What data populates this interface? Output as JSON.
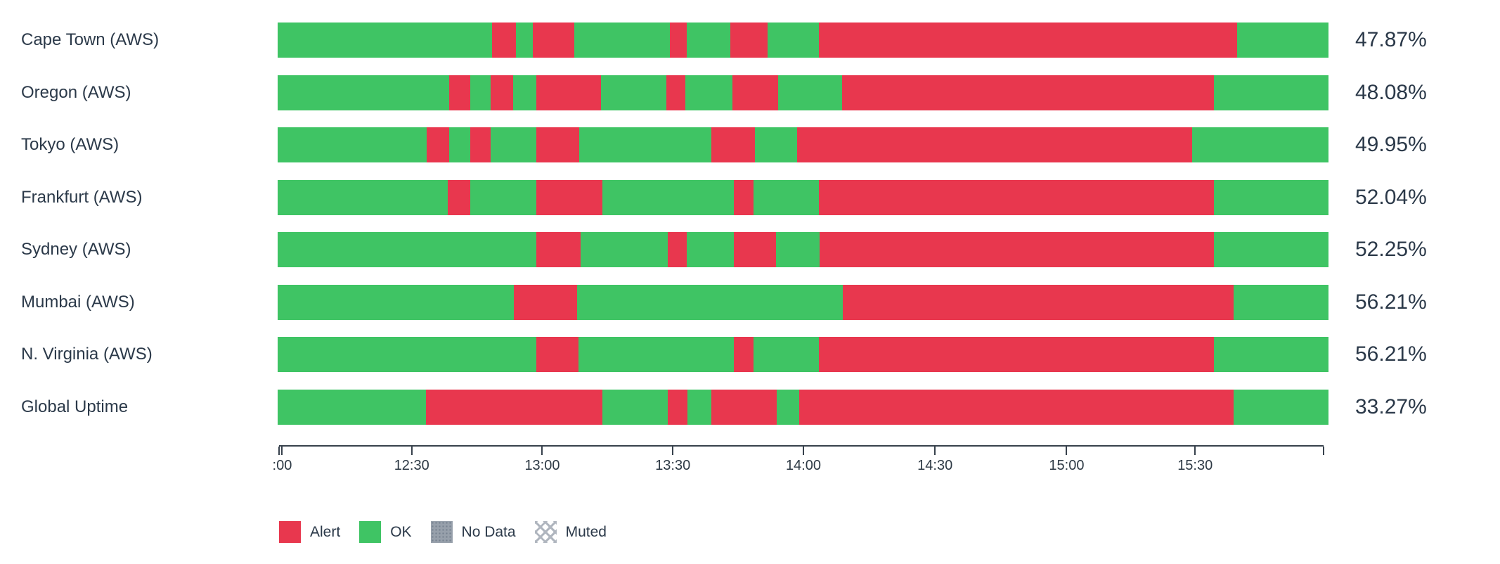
{
  "colors": {
    "alert": "#e8374e",
    "ok": "#3fc464",
    "no_data": "#97a0ab",
    "text": "#2b3949",
    "axis": "#37414c"
  },
  "chart_data": {
    "type": "status-timeline",
    "title": "",
    "xlabel": "",
    "ylabel": "",
    "grid": false,
    "legend_position": "bottom-left",
    "time_range": {
      "start": "12:00",
      "end": "16:00"
    },
    "time_ticks": [
      {
        "label": "",
        "f": 0
      },
      {
        "label": ":00",
        "f": 0.003
      },
      {
        "label": "12:30",
        "f": 0.127
      },
      {
        "label": "13:00",
        "f": 0.252
      },
      {
        "label": "13:30",
        "f": 0.377
      },
      {
        "label": "14:00",
        "f": 0.502
      },
      {
        "label": "14:30",
        "f": 0.628
      },
      {
        "label": "15:00",
        "f": 0.754
      },
      {
        "label": "15:30",
        "f": 0.877
      },
      {
        "label": "",
        "f": 1
      }
    ],
    "legend": [
      {
        "label": "Alert",
        "style": "alert"
      },
      {
        "label": "OK",
        "style": "ok"
      },
      {
        "label": "No Data",
        "style": "nodata"
      },
      {
        "label": "Muted",
        "style": "muted"
      }
    ],
    "rows": [
      {
        "label": "Cape Town (AWS)",
        "uptime": "47.87%",
        "segments": [
          [
            "ok",
            0,
            0.204
          ],
          [
            "alert",
            0.204,
            0.227
          ],
          [
            "ok",
            0.227,
            0.243
          ],
          [
            "alert",
            0.243,
            0.282
          ],
          [
            "ok",
            0.282,
            0.373
          ],
          [
            "alert",
            0.373,
            0.389
          ],
          [
            "ok",
            0.389,
            0.431
          ],
          [
            "alert",
            0.431,
            0.466
          ],
          [
            "ok",
            0.466,
            0.515
          ],
          [
            "alert",
            0.515,
            0.913
          ],
          [
            "ok",
            0.913,
            1
          ]
        ]
      },
      {
        "label": "Oregon (AWS)",
        "uptime": "48.08%",
        "segments": [
          [
            "ok",
            0,
            0.163
          ],
          [
            "alert",
            0.163,
            0.183
          ],
          [
            "ok",
            0.183,
            0.203
          ],
          [
            "alert",
            0.203,
            0.224
          ],
          [
            "ok",
            0.224,
            0.246
          ],
          [
            "alert",
            0.246,
            0.308
          ],
          [
            "ok",
            0.308,
            0.37
          ],
          [
            "alert",
            0.37,
            0.388
          ],
          [
            "ok",
            0.388,
            0.433
          ],
          [
            "alert",
            0.433,
            0.476
          ],
          [
            "ok",
            0.476,
            0.537
          ],
          [
            "alert",
            0.537,
            0.891
          ],
          [
            "ok",
            0.891,
            1
          ]
        ]
      },
      {
        "label": "Tokyo (AWS)",
        "uptime": "49.95%",
        "segments": [
          [
            "ok",
            0,
            0.142
          ],
          [
            "alert",
            0.142,
            0.163
          ],
          [
            "ok",
            0.163,
            0.183
          ],
          [
            "alert",
            0.183,
            0.203
          ],
          [
            "ok",
            0.203,
            0.246
          ],
          [
            "alert",
            0.246,
            0.287
          ],
          [
            "ok",
            0.287,
            0.413
          ],
          [
            "alert",
            0.413,
            0.454
          ],
          [
            "ok",
            0.454,
            0.494
          ],
          [
            "alert",
            0.494,
            0.87
          ],
          [
            "ok",
            0.87,
            1
          ]
        ]
      },
      {
        "label": "Frankfurt (AWS)",
        "uptime": "52.04%",
        "segments": [
          [
            "ok",
            0,
            0.162
          ],
          [
            "alert",
            0.162,
            0.183
          ],
          [
            "ok",
            0.183,
            0.246
          ],
          [
            "alert",
            0.246,
            0.309
          ],
          [
            "ok",
            0.309,
            0.434
          ],
          [
            "alert",
            0.434,
            0.453
          ],
          [
            "ok",
            0.453,
            0.515
          ],
          [
            "alert",
            0.515,
            0.891
          ],
          [
            "ok",
            0.891,
            1
          ]
        ]
      },
      {
        "label": "Sydney (AWS)",
        "uptime": "52.25%",
        "segments": [
          [
            "ok",
            0,
            0.246
          ],
          [
            "alert",
            0.246,
            0.288
          ],
          [
            "ok",
            0.288,
            0.371
          ],
          [
            "alert",
            0.371,
            0.389
          ],
          [
            "ok",
            0.389,
            0.434
          ],
          [
            "alert",
            0.434,
            0.474
          ],
          [
            "ok",
            0.474,
            0.516
          ],
          [
            "alert",
            0.516,
            0.891
          ],
          [
            "ok",
            0.891,
            1
          ]
        ]
      },
      {
        "label": "Mumbai (AWS)",
        "uptime": "56.21%",
        "segments": [
          [
            "ok",
            0,
            0.225
          ],
          [
            "alert",
            0.225,
            0.285
          ],
          [
            "ok",
            0.285,
            0.538
          ],
          [
            "alert",
            0.538,
            0.91
          ],
          [
            "ok",
            0.91,
            1
          ]
        ]
      },
      {
        "label": "N. Virginia (AWS)",
        "uptime": "56.21%",
        "segments": [
          [
            "ok",
            0,
            0.246
          ],
          [
            "alert",
            0.246,
            0.286
          ],
          [
            "ok",
            0.286,
            0.434
          ],
          [
            "alert",
            0.434,
            0.453
          ],
          [
            "ok",
            0.453,
            0.515
          ],
          [
            "alert",
            0.515,
            0.891
          ],
          [
            "ok",
            0.891,
            1
          ]
        ]
      },
      {
        "label": "Global Uptime",
        "uptime": "33.27%",
        "segments": [
          [
            "ok",
            0,
            0.141
          ],
          [
            "alert",
            0.141,
            0.309
          ],
          [
            "ok",
            0.309,
            0.371
          ],
          [
            "alert",
            0.371,
            0.39
          ],
          [
            "ok",
            0.39,
            0.413
          ],
          [
            "alert",
            0.413,
            0.475
          ],
          [
            "ok",
            0.475,
            0.496
          ],
          [
            "alert",
            0.496,
            0.91
          ],
          [
            "ok",
            0.91,
            1
          ]
        ]
      }
    ]
  }
}
